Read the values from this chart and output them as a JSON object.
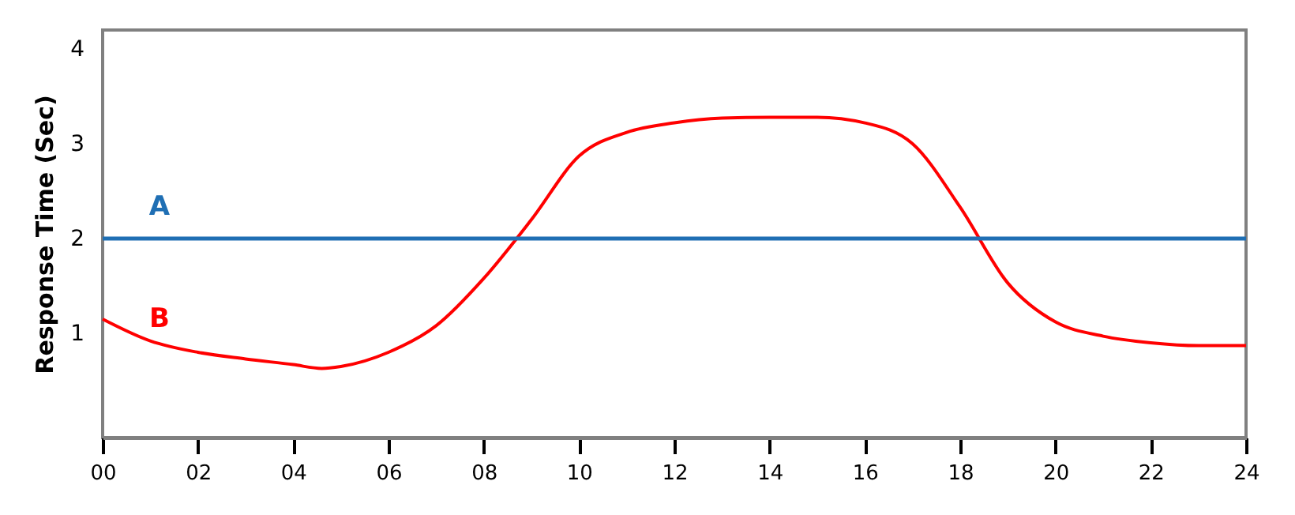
{
  "chart_data": {
    "type": "line",
    "ylabel": "Response Time (Sec)",
    "x": [
      0,
      1,
      2,
      3,
      4,
      4.6,
      5,
      6,
      7,
      8,
      9,
      10,
      11,
      12,
      13,
      14,
      15,
      16,
      17,
      18,
      19,
      20,
      21,
      22,
      23,
      24
    ],
    "series": [
      {
        "name": "B",
        "color": "#ff0000",
        "values": [
          1.15,
          0.92,
          0.8,
          0.73,
          0.67,
          0.63,
          0.65,
          0.8,
          1.08,
          1.58,
          2.2,
          2.87,
          3.12,
          3.22,
          3.27,
          3.28,
          3.28,
          3.22,
          3.0,
          2.33,
          1.53,
          1.12,
          0.97,
          0.9,
          0.87,
          0.87
        ]
      }
    ],
    "ref_lines": [
      {
        "axis": "y",
        "value": 2,
        "label": "A",
        "color": "#1f6fb4"
      }
    ],
    "xlim": [
      0,
      24
    ],
    "xticks": [
      {
        "value": 0,
        "label": "00"
      },
      {
        "value": 2,
        "label": "02"
      },
      {
        "value": 4,
        "label": "04"
      },
      {
        "value": 6,
        "label": "06"
      },
      {
        "value": 8,
        "label": "08"
      },
      10,
      12,
      14,
      16,
      18,
      20,
      22,
      24
    ],
    "ylim": [
      -0.1,
      4.2
    ],
    "yticks": [
      1,
      2,
      3,
      4
    ],
    "grid": false,
    "marker": "none",
    "line_style": "solid"
  }
}
